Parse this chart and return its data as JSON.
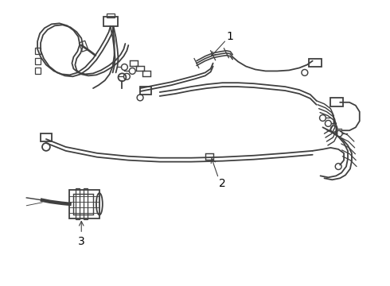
{
  "background_color": "#ffffff",
  "line_color": "#404040",
  "line_width": 1.3,
  "label_color": "#000000",
  "label_fontsize": 10,
  "figsize": [
    4.9,
    3.6
  ],
  "dpi": 100
}
